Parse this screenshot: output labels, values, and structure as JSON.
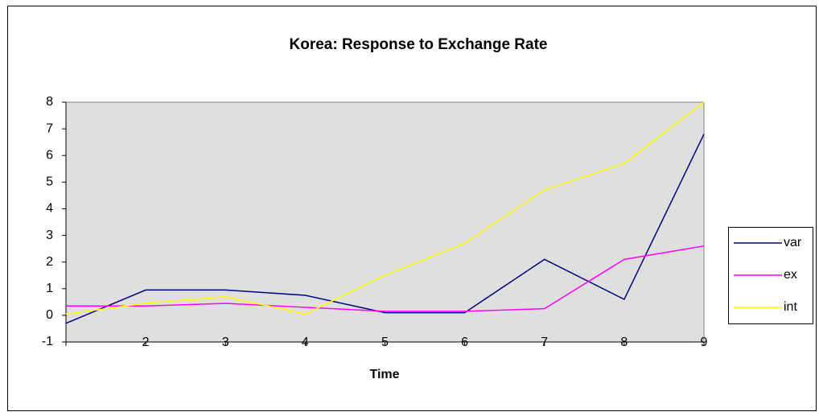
{
  "chart_data": {
    "type": "line",
    "title": "Korea: Response to Exchange Rate",
    "x_label": "Time",
    "categories": [
      null,
      "2",
      "3",
      "4",
      "5",
      "6",
      "7",
      "8",
      "9"
    ],
    "series": [
      {
        "name": "var",
        "color": "#000080",
        "values": [
          -0.3,
          0.95,
          0.95,
          0.75,
          0.1,
          0.1,
          2.1,
          0.6,
          6.8
        ]
      },
      {
        "name": "ex",
        "color": "#ff00ff",
        "values": [
          0.35,
          0.35,
          0.45,
          0.3,
          0.15,
          0.15,
          0.25,
          2.1,
          2.6
        ]
      },
      {
        "name": "int",
        "color": "#ffff00",
        "values": [
          0.05,
          0.45,
          0.7,
          0.05,
          1.5,
          2.7,
          4.7,
          5.7,
          8.0
        ]
      }
    ],
    "ylim": [
      -1,
      8
    ],
    "yticks": [
      -1,
      0,
      1,
      2,
      3,
      4,
      5,
      6,
      7,
      8
    ],
    "grid": false,
    "legend": "right"
  }
}
